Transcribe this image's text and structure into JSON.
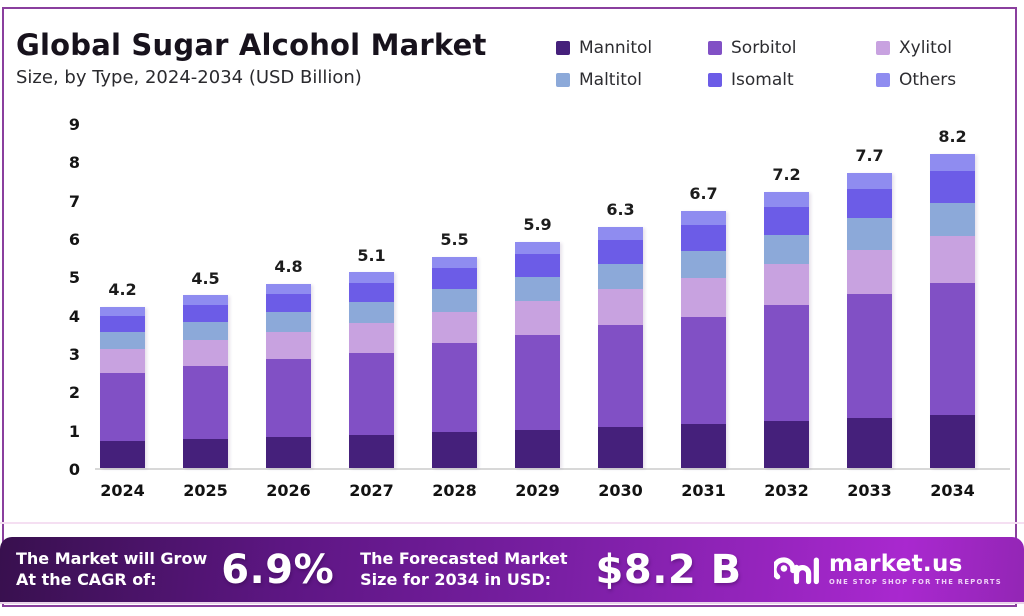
{
  "header": {
    "title": "Global Sugar Alcohol Market",
    "subtitle": "Size, by Type, 2024-2034 (USD Billion)"
  },
  "chart_data": {
    "type": "bar",
    "stacked": true,
    "title": "Global Sugar Alcohol Market Size, by Type, 2024-2034 (USD Billion)",
    "categories": [
      "2024",
      "2025",
      "2026",
      "2027",
      "2028",
      "2029",
      "2030",
      "2031",
      "2032",
      "2033",
      "2034"
    ],
    "totals": [
      4.2,
      4.5,
      4.8,
      5.1,
      5.5,
      5.9,
      6.3,
      6.7,
      7.2,
      7.7,
      8.2
    ],
    "series": [
      {
        "name": "Mannitol",
        "color": "#45207b",
        "values": [
          0.71,
          0.77,
          0.82,
          0.87,
          0.94,
          1.0,
          1.07,
          1.14,
          1.22,
          1.31,
          1.39
        ]
      },
      {
        "name": "Sorbitol",
        "color": "#8150c5",
        "values": [
          1.76,
          1.89,
          2.02,
          2.14,
          2.31,
          2.48,
          2.65,
          2.81,
          3.02,
          3.23,
          3.44
        ]
      },
      {
        "name": "Xylitol",
        "color": "#c8a2e0",
        "values": [
          0.63,
          0.68,
          0.72,
          0.77,
          0.83,
          0.89,
          0.95,
          1.01,
          1.08,
          1.16,
          1.23
        ]
      },
      {
        "name": "Maltitol",
        "color": "#8ca9d9",
        "values": [
          0.44,
          0.47,
          0.5,
          0.54,
          0.58,
          0.62,
          0.66,
          0.7,
          0.76,
          0.81,
          0.86
        ]
      },
      {
        "name": "Isomalt",
        "color": "#6c5ce7",
        "values": [
          0.42,
          0.45,
          0.48,
          0.51,
          0.55,
          0.59,
          0.63,
          0.67,
          0.72,
          0.77,
          0.82
        ]
      },
      {
        "name": "Others",
        "color": "#8f8cf0",
        "values": [
          0.24,
          0.24,
          0.26,
          0.27,
          0.29,
          0.32,
          0.34,
          0.37,
          0.4,
          0.42,
          0.46
        ]
      }
    ],
    "ylim": [
      0,
      9
    ],
    "y_ticks": [
      0,
      1,
      2,
      3,
      4,
      5,
      6,
      7,
      8,
      9
    ],
    "grid": false,
    "legend_position": "top-right",
    "xlabel": "",
    "ylabel": ""
  },
  "banner": {
    "cagr_label_line1": "The Market will Grow",
    "cagr_label_line2": "At the CAGR of:",
    "cagr_value": "6.9%",
    "forecast_label_line1": "The Forecasted Market",
    "forecast_label_line2": "Size for 2034 in USD:",
    "forecast_value": "$8.2 B",
    "brand": {
      "name": "market.us",
      "tagline": "ONE STOP SHOP FOR THE REPORTS"
    }
  },
  "colors": {
    "frame_border": "#8a3f9e",
    "banner_gradient_start": "#38104e",
    "banner_gradient_end": "#a928cf"
  }
}
